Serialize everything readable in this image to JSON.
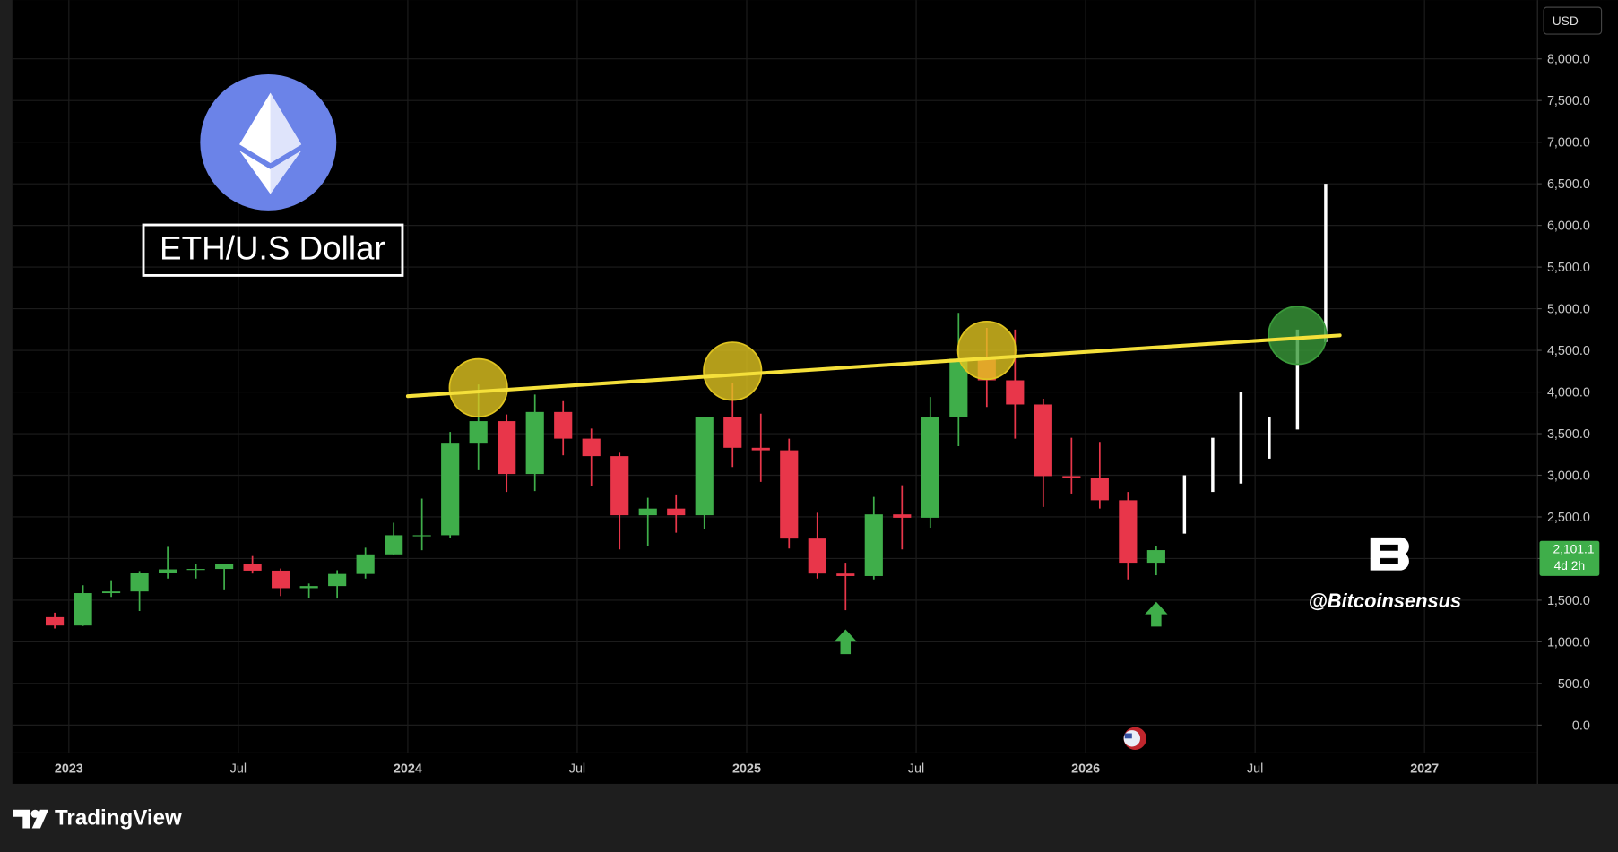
{
  "chart_data": {
    "type": "candlestick",
    "title": "ETH/U.S Dollar",
    "currency": "USD",
    "watermark": "@Bitcoinsensus",
    "brand": "TradingView",
    "x": [
      "2022-12",
      "2023-01",
      "2023-02",
      "2023-03",
      "2023-04",
      "2023-05",
      "2023-06",
      "2023-07",
      "2023-08",
      "2023-09",
      "2023-10",
      "2023-11",
      "2023-12",
      "2024-01",
      "2024-02",
      "2024-03",
      "2024-04",
      "2024-05",
      "2024-06",
      "2024-07",
      "2024-08",
      "2024-09",
      "2024-10",
      "2024-11",
      "2024-12",
      "2025-01",
      "2025-02",
      "2025-03",
      "2025-04",
      "2025-05",
      "2025-06",
      "2025-07",
      "2025-08",
      "2025-09",
      "2025-10",
      "2025-11",
      "2025-12",
      "2026-01",
      "2026-02",
      "2026-03"
    ],
    "open": [
      1296,
      1196,
      1585,
      1605,
      1822,
      1870,
      1875,
      1935,
      1855,
      1645,
      1670,
      1815,
      2050,
      2280,
      2280,
      3380,
      3650,
      3015,
      3760,
      3440,
      3230,
      2520,
      2600,
      2520,
      3700,
      3330,
      3300,
      2240,
      1820,
      1790,
      2530,
      2490,
      3700,
      4400,
      4140,
      3850,
      2990,
      2970,
      2700,
      1950
    ],
    "high": [
      1350,
      1680,
      1740,
      1850,
      2140,
      1930,
      1930,
      2030,
      1880,
      1700,
      1860,
      2130,
      2430,
      2720,
      3520,
      4090,
      3730,
      3970,
      3890,
      3560,
      3270,
      2730,
      2770,
      3700,
      4110,
      3740,
      3440,
      2550,
      1950,
      2740,
      2880,
      3940,
      4950,
      4770,
      4750,
      3920,
      3450,
      3400,
      2800,
      2150
    ],
    "low": [
      1160,
      1190,
      1540,
      1370,
      1760,
      1760,
      1630,
      1820,
      1550,
      1530,
      1520,
      1760,
      2040,
      2100,
      2250,
      3060,
      2800,
      2810,
      3240,
      2870,
      2110,
      2150,
      2310,
      2360,
      3100,
      2920,
      2120,
      1760,
      1380,
      1750,
      2110,
      2370,
      3350,
      3820,
      3440,
      2620,
      2780,
      2600,
      1750,
      1800
    ],
    "close": [
      1196,
      1585,
      1605,
      1822,
      1870,
      1875,
      1935,
      1855,
      1645,
      1670,
      1815,
      2050,
      2280,
      2280,
      3380,
      3650,
      3015,
      3760,
      3440,
      3230,
      2520,
      2600,
      2520,
      3700,
      3330,
      3300,
      2240,
      1820,
      1790,
      2530,
      2490,
      3700,
      4400,
      4140,
      3850,
      2990,
      2970,
      2700,
      1950,
      2101.1
    ],
    "up_color": "#3fae4a",
    "down_color": "#e8364a",
    "projection": {
      "x": [
        "2026-04",
        "2026-05",
        "2026-06",
        "2026-07",
        "2026-08",
        "2026-09"
      ],
      "low": [
        2300,
        2800,
        2900,
        3200,
        3550,
        4600
      ],
      "high": [
        3000,
        3450,
        4000,
        3700,
        4750,
        6500
      ],
      "color": "#ffffff"
    },
    "trendline": {
      "x": [
        "2024-01",
        "2026-10"
      ],
      "y": [
        3950,
        4680
      ],
      "color": "#f5e03a"
    },
    "circles": [
      {
        "x": "2024-03",
        "value": 4050,
        "color": "#e0c420"
      },
      {
        "x": "2024-12",
        "value": 4250,
        "color": "#e0c420"
      },
      {
        "x": "2025-09",
        "value": 4500,
        "color": "#e0c420"
      },
      {
        "x": "2026-08",
        "value": 4680,
        "color": "#3a9a3a"
      }
    ],
    "arrows": [
      {
        "x": "2025-04",
        "value": 1150
      },
      {
        "x": "2026-03",
        "value": 1480
      }
    ],
    "last_price": {
      "value": 2101.1,
      "label": "2,101.1"
    },
    "countdown": "4d 2h",
    "xlim": [
      "2022-11",
      "2027-05"
    ],
    "xticks": [
      {
        "value": "2023-01",
        "label": "2023"
      },
      {
        "value": "2023-07",
        "label": "Jul"
      },
      {
        "value": "2024-01",
        "label": "2024"
      },
      {
        "value": "2024-07",
        "label": "Jul"
      },
      {
        "value": "2025-01",
        "label": "2025"
      },
      {
        "value": "2025-07",
        "label": "Jul"
      },
      {
        "value": "2026-01",
        "label": "2026"
      },
      {
        "value": "2026-07",
        "label": "Jul"
      },
      {
        "value": "2027-01",
        "label": "2027"
      }
    ],
    "ylim": [
      -334,
      8706
    ],
    "yticks": [
      {
        "value": 0,
        "label": "0.0"
      },
      {
        "value": 500,
        "label": "500.0"
      },
      {
        "value": 1000,
        "label": "1,000.0"
      },
      {
        "value": 1500,
        "label": "1,500.0"
      },
      {
        "value": 2000,
        "label": "2,000.0"
      },
      {
        "value": 2500,
        "label": "2,500.0"
      },
      {
        "value": 3000,
        "label": "3,000.0"
      },
      {
        "value": 3500,
        "label": "3,500.0"
      },
      {
        "value": 4000,
        "label": "4,000.0"
      },
      {
        "value": 4500,
        "label": "4,500.0"
      },
      {
        "value": 5000,
        "label": "5,000.0"
      },
      {
        "value": 5500,
        "label": "5,500.0"
      },
      {
        "value": 6000,
        "label": "6,000.0"
      },
      {
        "value": 6500,
        "label": "6,500.0"
      },
      {
        "value": 7000,
        "label": "7,000.0"
      },
      {
        "value": 7500,
        "label": "7,500.0"
      },
      {
        "value": 8000,
        "label": "8,000.0"
      }
    ],
    "grid": true
  }
}
